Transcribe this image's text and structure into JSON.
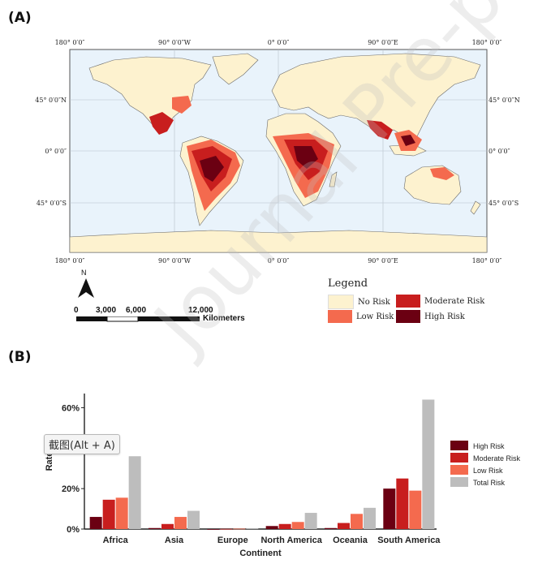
{
  "panels": {
    "a_label": "(A)",
    "b_label": "(B)"
  },
  "map": {
    "top_lon_labels": [
      "180° 0′0″",
      "90° 0′0″W",
      "0° 0′0″",
      "90° 0′0″E",
      "180° 0′0″"
    ],
    "bottom_lon_labels": [
      "180° 0′0″",
      "90° 0′0″W",
      "0° 0′0″",
      "90° 0′0″E",
      "180° 0′0″"
    ],
    "left_lat_labels": [
      "45° 0′0″N",
      "0° 0′0″",
      "45° 0′0″S"
    ],
    "right_lat_labels": [
      "45° 0′0″N",
      "0° 0′0″",
      "45° 0′0″S"
    ],
    "north_label": "N",
    "scale": {
      "ticks": [
        "0",
        "3,000",
        "6,000",
        "12,000"
      ],
      "unit": "Kilometers"
    },
    "legend": {
      "title": "Legend",
      "items": [
        {
          "label": "No Risk",
          "color": "#fdf2cf"
        },
        {
          "label": "Moderate Risk",
          "color": "#c81e1e"
        },
        {
          "label": "Low Risk",
          "color": "#f46a4e"
        },
        {
          "label": "High Risk",
          "color": "#6b0012"
        }
      ]
    },
    "colors": {
      "ocean": "#e9f3fb",
      "land": "#fdf2cf"
    }
  },
  "tooltip": {
    "text": "截图(Alt + A)"
  },
  "watermark": {
    "text": "Journal Pre-proofs"
  },
  "chart_data": {
    "type": "bar",
    "categories": [
      "Africa",
      "Asia",
      "Europe",
      "North America",
      "Oceania",
      "South America"
    ],
    "series": [
      {
        "name": "High Risk",
        "color": "#6b0012",
        "values": [
          6,
          0.5,
          0,
          1.5,
          0.5,
          20
        ]
      },
      {
        "name": "Moderate Risk",
        "color": "#c81e1e",
        "values": [
          14.5,
          2.5,
          0.1,
          2.5,
          3,
          25
        ]
      },
      {
        "name": "Low Risk",
        "color": "#f46a4e",
        "values": [
          15.5,
          6,
          0.2,
          3.5,
          7.5,
          19
        ]
      },
      {
        "name": "Total Risk",
        "color": "#bdbdbd",
        "values": [
          36,
          9,
          0.3,
          8,
          10.5,
          64
        ]
      }
    ],
    "xlabel": "Continent",
    "ylabel": "Rate",
    "yticks": [
      "0%",
      "20%",
      "60%"
    ],
    "ytick_values": [
      0,
      20,
      60
    ],
    "ylim": [
      0,
      67
    ],
    "legend_position": "right"
  }
}
